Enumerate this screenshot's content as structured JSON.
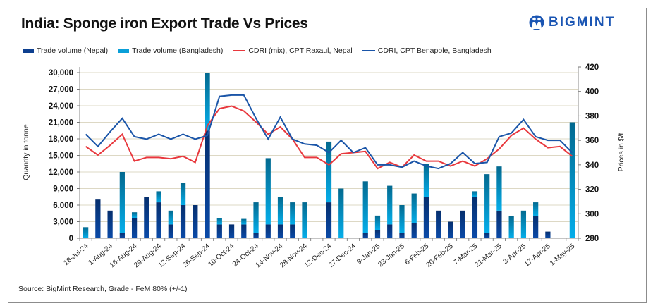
{
  "chart_data": {
    "type": "bar",
    "title": "India: Sponge iron Export Trade Vs Prices",
    "brand": "BIGMINT",
    "source": "Source: BigMint Research, Grade - FeM 80% (+/-1)",
    "ylabel": "Quantity in tonne",
    "y2label": "Prices in $/t",
    "ylim": [
      0,
      30000
    ],
    "yticks": [
      "0",
      "3,000",
      "6,000",
      "9,000",
      "12,000",
      "15,000",
      "18,000",
      "21,000",
      "24,000",
      "27,000",
      "30,000"
    ],
    "y2lim": [
      280,
      420
    ],
    "y2ticks": [
      "280",
      "300",
      "320",
      "340",
      "360",
      "380",
      "400",
      "420"
    ],
    "grid": true,
    "legend_position": "top",
    "x_labels": [
      "18-Jul-24",
      "1-Aug-24",
      "16-Aug-24",
      "29-Aug-24",
      "12-Sep-24",
      "26-Sep-24",
      "10-Oct-24",
      "24-Oct-24",
      "14-Nov-24",
      "28-Nov-24",
      "12-Dec-24",
      "27-Dec-24",
      "9-Jan-25",
      "23-Jan-25",
      "6-Feb-25",
      "20-Feb-25",
      "7-Mar-25",
      "21-Mar-25",
      "3-Apr-25",
      "17-Apr-25",
      "1-May-25"
    ],
    "n_points": 41,
    "series": [
      {
        "name": "Trade volume (Nepal)",
        "type": "stacked-bar",
        "color": "#0d3f8f",
        "values": [
          0,
          7000,
          5000,
          1000,
          3700,
          7500,
          6500,
          2500,
          6000,
          6000,
          19500,
          2500,
          2500,
          2500,
          1000,
          2500,
          2500,
          2500,
          0,
          0,
          6500,
          0,
          0,
          1000,
          1500,
          2500,
          1000,
          2700,
          7500,
          5000,
          3000,
          5000,
          7500,
          1000,
          5000,
          0,
          0,
          4000,
          1200,
          0,
          0
        ]
      },
      {
        "name": "Trade volume (Bangladesh)",
        "type": "stacked-bar",
        "color": "#0a9fd8",
        "values": [
          2000,
          0,
          0,
          11000,
          1000,
          0,
          2000,
          2500,
          4000,
          0,
          10500,
          1200,
          0,
          1000,
          5500,
          12000,
          5000,
          4000,
          6500,
          0,
          11000,
          9000,
          0,
          9300,
          2600,
          7000,
          5000,
          5400,
          6000,
          0,
          0,
          0,
          1000,
          10600,
          8000,
          4000,
          5000,
          2500,
          0,
          0,
          21000
        ]
      },
      {
        "name": "CDRI (mix), CPT Raxaul, Nepal",
        "type": "line",
        "axis": "right",
        "color": "#e8383d",
        "values": [
          355,
          348,
          356,
          365,
          343,
          346,
          346,
          345,
          347,
          342,
          372,
          386,
          388,
          384,
          375,
          365,
          371,
          361,
          346,
          346,
          340,
          349,
          350,
          351,
          337,
          342,
          338,
          348,
          343,
          343,
          339,
          343,
          339,
          345,
          353,
          364,
          370,
          361,
          354,
          355,
          347
        ]
      },
      {
        "name": "CDRI, CPT Benapole, Bangladesh",
        "type": "line",
        "axis": "right",
        "color": "#1a55a8",
        "values": [
          365,
          355,
          367,
          378,
          363,
          361,
          365,
          361,
          365,
          361,
          364,
          396,
          397,
          397,
          378,
          361,
          379,
          361,
          357,
          356,
          350,
          360,
          350,
          354,
          340,
          340,
          338,
          343,
          339,
          337,
          341,
          350,
          341,
          342,
          363,
          366,
          377,
          363,
          360,
          360,
          350
        ]
      }
    ]
  }
}
